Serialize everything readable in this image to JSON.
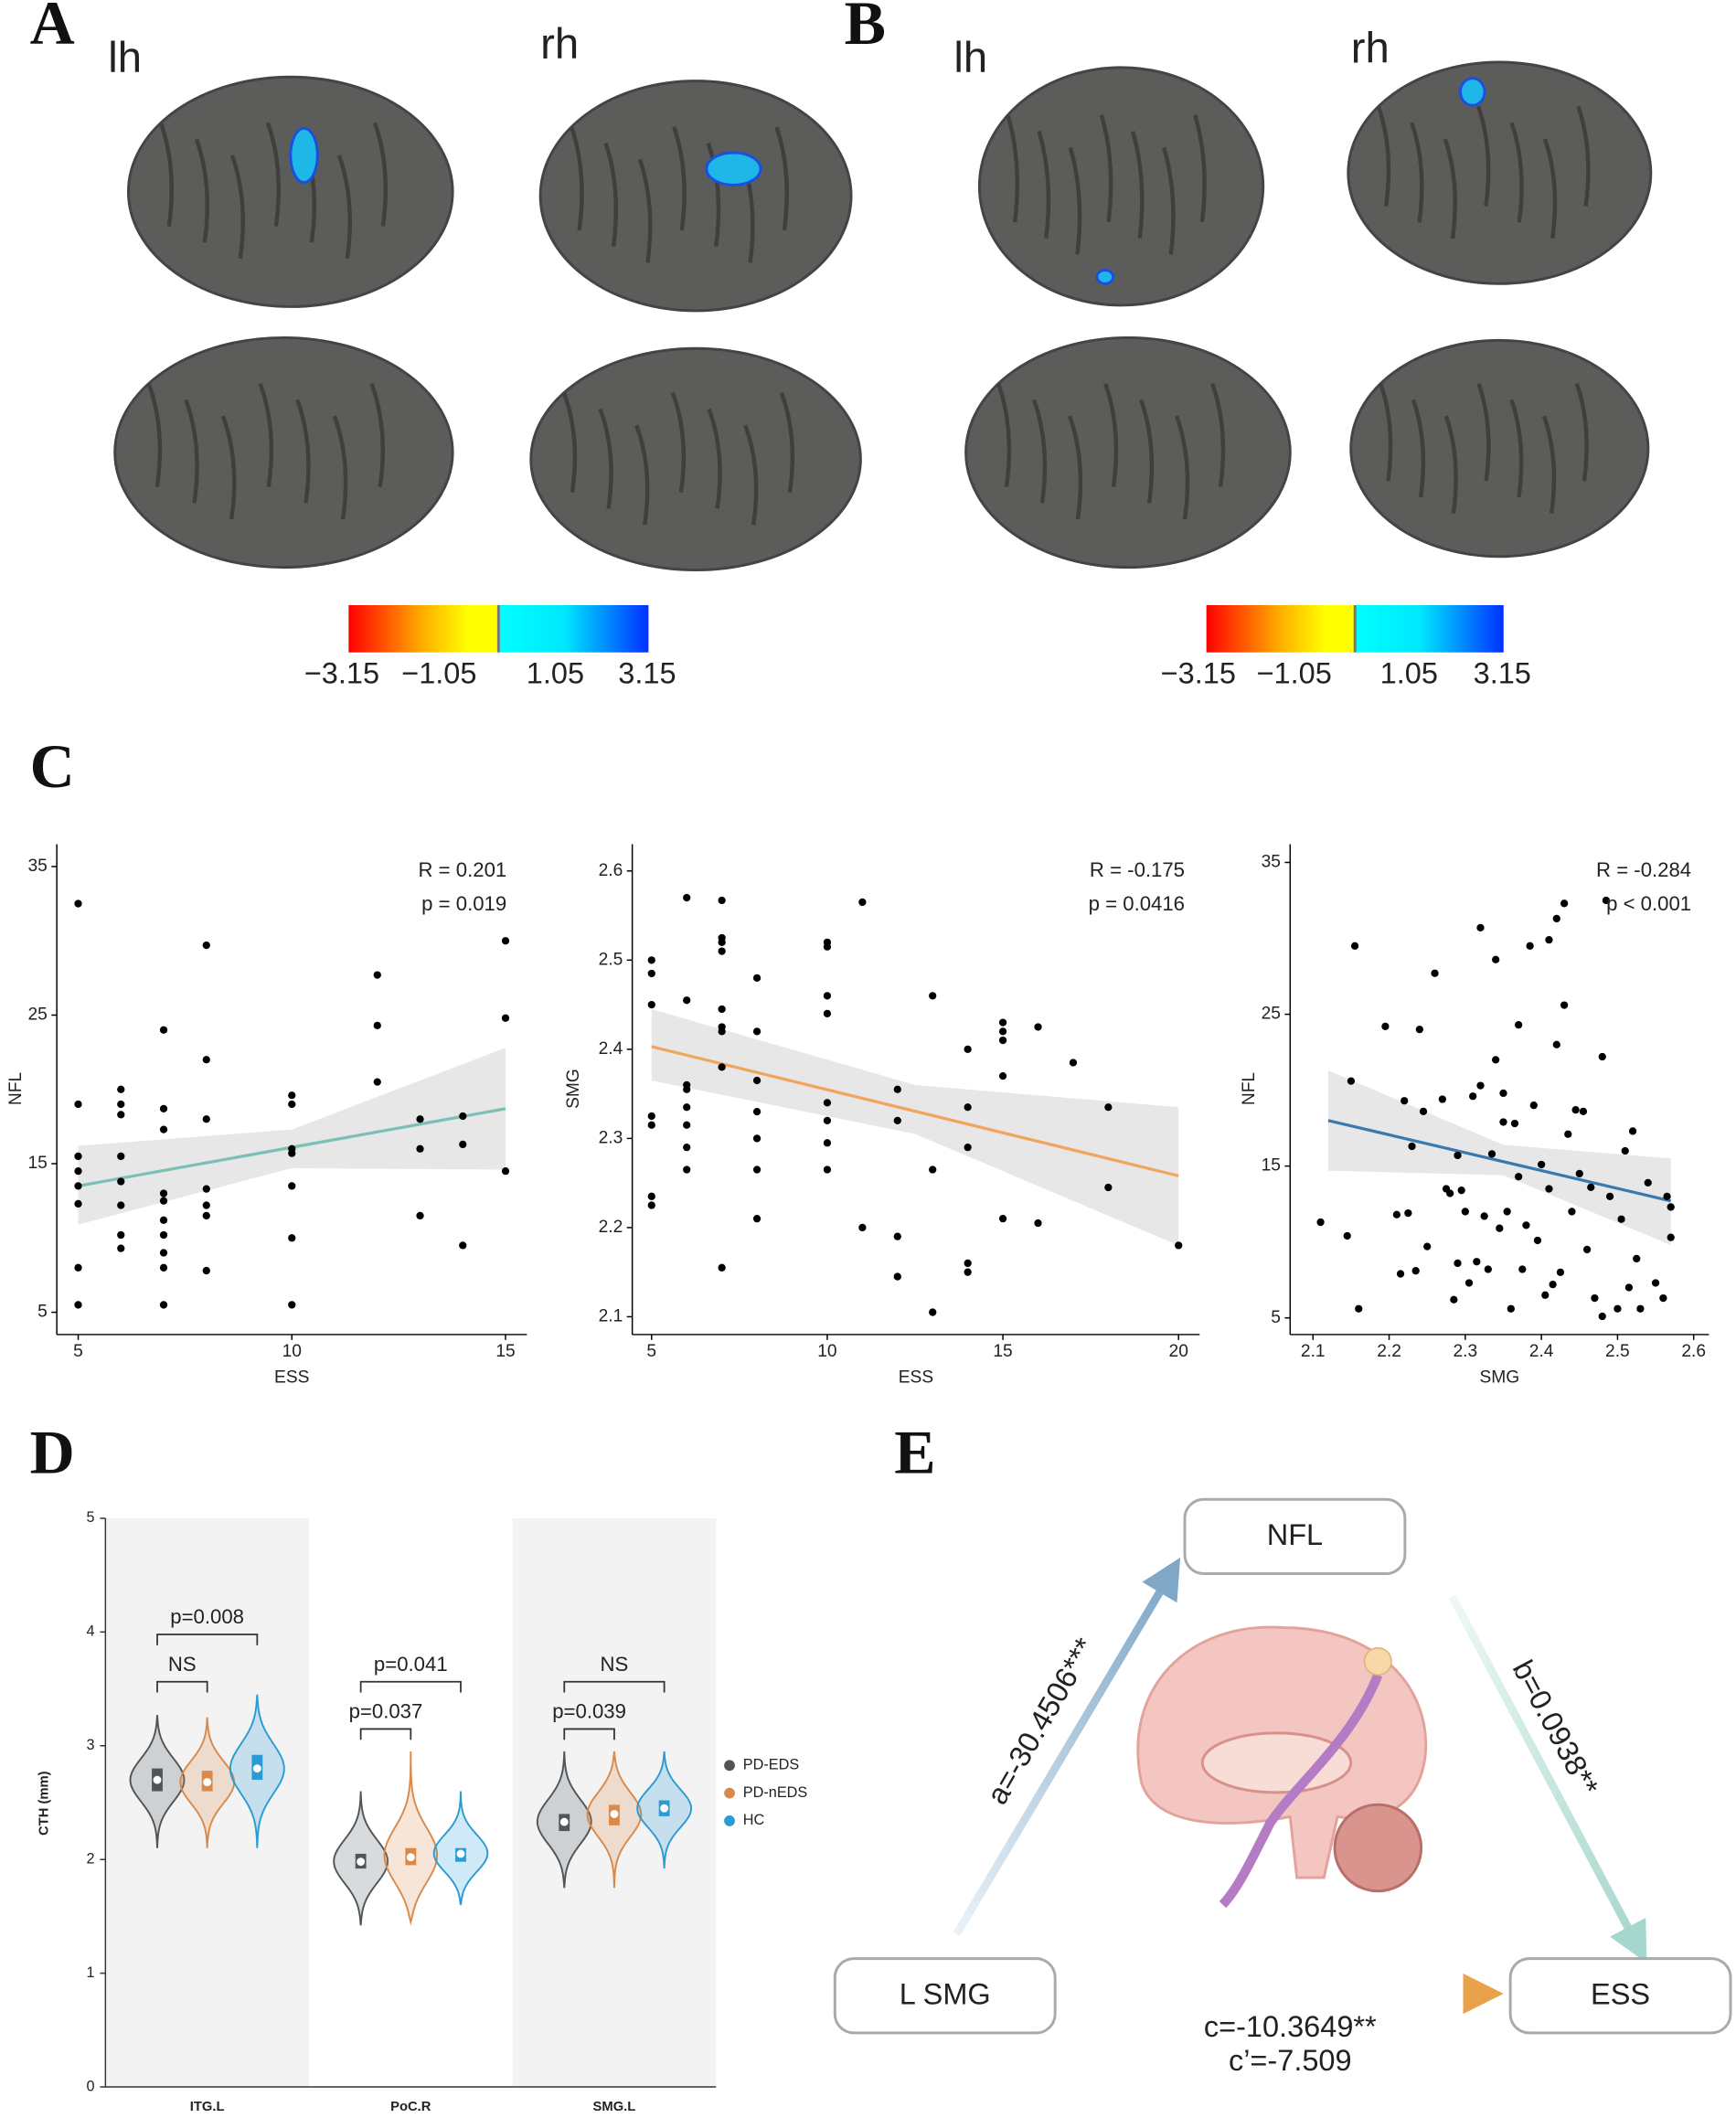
{
  "panel_labels": [
    "A",
    "B",
    "C",
    "D",
    "E"
  ],
  "brain_maps": [
    {
      "hemispheres": [
        "lh",
        "rh"
      ],
      "colorbar_labels": [
        "−3.15",
        "−1.05",
        "1.05",
        "3.15"
      ]
    },
    {
      "hemispheres": [
        "lh",
        "rh"
      ],
      "colorbar_labels": [
        "−3.15",
        "−1.05",
        "1.05",
        "3.15"
      ]
    }
  ],
  "chart_data": [
    {
      "type": "scatter",
      "xlabel": "ESS",
      "ylabel": "NFL",
      "x": [
        5,
        5,
        5,
        5,
        5,
        5,
        5,
        5,
        6,
        6,
        6,
        6,
        6,
        6,
        6,
        6,
        7,
        7,
        7,
        7,
        7,
        7,
        7,
        7,
        7,
        7,
        8,
        8,
        8,
        8,
        8,
        8,
        8,
        10,
        10,
        10,
        10,
        10,
        10,
        10,
        12,
        12,
        12,
        13,
        13,
        13,
        14,
        14,
        14,
        15,
        15,
        15
      ],
      "values": [
        32.5,
        19,
        15.5,
        14.5,
        13.5,
        12.3,
        8,
        5.5,
        20,
        19,
        18.3,
        15.5,
        13.8,
        12.2,
        10.2,
        9.3,
        24,
        18.7,
        17.3,
        13,
        12.5,
        11.2,
        10.2,
        9,
        8,
        5.5,
        29.7,
        22,
        18,
        13.3,
        12.2,
        11.5,
        7.8,
        19.6,
        19,
        16,
        15.7,
        13.5,
        10,
        5.5,
        27.7,
        24.3,
        20.5,
        18,
        16,
        11.5,
        18.2,
        16.3,
        9.5,
        30,
        24.8,
        14.5
      ],
      "point_color": "#000000",
      "fit": {
        "x": [
          5,
          15
        ],
        "y": [
          13.5,
          18.7
        ],
        "color": "#7cc0b5"
      },
      "ci": {
        "x": [
          5,
          10,
          15
        ],
        "lower": [
          10.9,
          14.7,
          14.6
        ],
        "upper": [
          16.2,
          17.3,
          22.8
        ],
        "color": "#e3e3e3"
      },
      "xlim": [
        4.5,
        15.5
      ],
      "ylim": [
        3.5,
        36.5
      ],
      "xticks": [
        5,
        10,
        15
      ],
      "yticks": [
        5,
        15,
        25,
        35
      ],
      "annotations": [
        "R = 0.201",
        "p = 0.019"
      ]
    },
    {
      "type": "scatter",
      "xlabel": "ESS",
      "ylabel": "SMG",
      "x": [
        5,
        5,
        5,
        5,
        5,
        5,
        5,
        6,
        6,
        6,
        6,
        6,
        6,
        6,
        6,
        7,
        7,
        7,
        7,
        7,
        7,
        7,
        7,
        7,
        8,
        8,
        8,
        8,
        8,
        8,
        8,
        10,
        10,
        10,
        10,
        10,
        10,
        10,
        10,
        11,
        11,
        12,
        12,
        12,
        12,
        13,
        13,
        13,
        14,
        14,
        14,
        14,
        14,
        15,
        15,
        15,
        15,
        15,
        16,
        16,
        17,
        18,
        18,
        20
      ],
      "values": [
        2.5,
        2.485,
        2.45,
        2.325,
        2.315,
        2.235,
        2.225,
        2.57,
        2.455,
        2.36,
        2.355,
        2.335,
        2.315,
        2.29,
        2.265,
        2.567,
        2.525,
        2.52,
        2.51,
        2.445,
        2.425,
        2.42,
        2.38,
        2.155,
        2.48,
        2.42,
        2.365,
        2.33,
        2.3,
        2.265,
        2.21,
        2.52,
        2.515,
        2.46,
        2.44,
        2.34,
        2.32,
        2.295,
        2.265,
        2.565,
        2.2,
        2.355,
        2.32,
        2.19,
        2.145,
        2.46,
        2.265,
        2.105,
        2.4,
        2.335,
        2.29,
        2.16,
        2.15,
        2.43,
        2.42,
        2.41,
        2.37,
        2.21,
        2.425,
        2.205,
        2.385,
        2.335,
        2.245,
        2.18
      ],
      "point_color": "#000000",
      "fit": {
        "x": [
          5,
          20
        ],
        "y": [
          2.403,
          2.258
        ],
        "color": "#f0a55e"
      },
      "ci": {
        "x": [
          5,
          12.5,
          20
        ],
        "lower": [
          2.365,
          2.305,
          2.18
        ],
        "upper": [
          2.445,
          2.36,
          2.335
        ],
        "color": "#e3e3e3"
      },
      "xlim": [
        4.45,
        20.6
      ],
      "ylim": [
        2.08,
        2.63
      ],
      "xticks": [
        5,
        10,
        15,
        20
      ],
      "yticks": [
        2.1,
        2.2,
        2.3,
        2.4,
        2.5,
        2.6
      ],
      "annotations": [
        "R = -0.175",
        "p = 0.0416"
      ]
    },
    {
      "type": "scatter",
      "xlabel": "SMG",
      "ylabel": "NFL",
      "x": [
        2.11,
        2.145,
        2.15,
        2.155,
        2.16,
        2.195,
        2.21,
        2.215,
        2.22,
        2.225,
        2.23,
        2.235,
        2.24,
        2.245,
        2.25,
        2.26,
        2.27,
        2.275,
        2.28,
        2.285,
        2.29,
        2.29,
        2.295,
        2.3,
        2.305,
        2.31,
        2.315,
        2.32,
        2.32,
        2.325,
        2.33,
        2.335,
        2.34,
        2.34,
        2.345,
        2.35,
        2.35,
        2.355,
        2.36,
        2.365,
        2.37,
        2.37,
        2.375,
        2.38,
        2.385,
        2.39,
        2.395,
        2.4,
        2.405,
        2.41,
        2.41,
        2.415,
        2.42,
        2.42,
        2.425,
        2.43,
        2.43,
        2.435,
        2.44,
        2.445,
        2.45,
        2.455,
        2.46,
        2.465,
        2.47,
        2.48,
        2.48,
        2.485,
        2.49,
        2.5,
        2.505,
        2.51,
        2.515,
        2.52,
        2.525,
        2.53,
        2.54,
        2.55,
        2.56,
        2.565,
        2.57,
        2.57
      ],
      "values": [
        11.3,
        10.4,
        20.6,
        29.5,
        5.6,
        24.2,
        11.8,
        7.9,
        19.3,
        11.9,
        16.3,
        8.1,
        24,
        18.6,
        9.7,
        27.7,
        19.4,
        13.5,
        13.2,
        6.2,
        15.7,
        8.6,
        13.4,
        12,
        7.3,
        19.6,
        8.7,
        30.7,
        20.3,
        11.7,
        8.2,
        15.8,
        28.6,
        22,
        10.9,
        19.8,
        17.9,
        12,
        5.6,
        17.8,
        24.3,
        14.3,
        8.2,
        11.1,
        29.5,
        19,
        10.1,
        15.1,
        6.5,
        29.9,
        13.5,
        7.2,
        31.3,
        23,
        8,
        32.3,
        25.6,
        17.1,
        12,
        18.7,
        14.5,
        18.6,
        9.5,
        13.6,
        6.3,
        22.2,
        5.1,
        32.5,
        13,
        5.6,
        11.5,
        16,
        7,
        17.3,
        8.9,
        5.6,
        13.9,
        7.3,
        6.3,
        13,
        10.3,
        12.3
      ],
      "point_color": "#000000",
      "fit": {
        "x": [
          2.12,
          2.57
        ],
        "y": [
          18,
          12.7
        ],
        "color": "#3b78b0"
      },
      "ci": {
        "x": [
          2.12,
          2.35,
          2.57
        ],
        "lower": [
          14.7,
          14.4,
          9.8
        ],
        "upper": [
          21.3,
          16.4,
          15.5
        ],
        "color": "#e3e3e3"
      },
      "xlim": [
        2.07,
        2.62
      ],
      "ylim": [
        3.9,
        36.2
      ],
      "xticks": [
        2.1,
        2.2,
        2.3,
        2.4,
        2.5,
        2.6
      ],
      "yticks": [
        5,
        15,
        25,
        35
      ],
      "annotations": [
        "R = -0.284",
        "p < 0.001"
      ]
    },
    {
      "type": "violin",
      "ylabel": "CTH (mm)",
      "categories": [
        "ITG.L",
        "PoC.R",
        "SMG.L"
      ],
      "ylim": [
        0,
        5
      ],
      "yticks": [
        0,
        1,
        2,
        3,
        4,
        5
      ],
      "series": [
        {
          "name": "PD-EDS",
          "color": "#4f5559",
          "median": [
            2.7,
            1.98,
            2.33
          ],
          "q1": [
            2.6,
            1.92,
            2.25
          ],
          "q3": [
            2.8,
            2.05,
            2.4
          ],
          "min": [
            2.1,
            1.42,
            1.75
          ],
          "max": [
            3.27,
            2.6,
            2.95
          ]
        },
        {
          "name": "PD-nEDS",
          "color": "#d98a4a",
          "median": [
            2.68,
            2.02,
            2.4
          ],
          "q1": [
            2.6,
            1.95,
            2.3
          ],
          "q3": [
            2.78,
            2.1,
            2.48
          ],
          "min": [
            2.1,
            1.45,
            1.75
          ],
          "max": [
            3.25,
            2.95,
            2.95
          ]
        },
        {
          "name": "HC",
          "color": "#2b9bd4",
          "median": [
            2.8,
            2.05,
            2.45
          ],
          "q1": [
            2.7,
            1.98,
            2.38
          ],
          "q3": [
            2.92,
            2.1,
            2.52
          ],
          "min": [
            2.1,
            1.6,
            1.92
          ],
          "max": [
            3.45,
            2.6,
            2.95
          ]
        }
      ],
      "annotations": [
        [
          "NS",
          "p=0.008"
        ],
        [
          "p=0.037",
          "p=0.041"
        ],
        [
          "p=0.039",
          "NS"
        ]
      ]
    }
  ],
  "mediation": {
    "nodes": [
      "NFL",
      "L SMG",
      "ESS"
    ],
    "paths": {
      "a": "a=-30.4506***",
      "b": "b=0.0938**",
      "c": "c=-10.3649**",
      "c_prime": "c’=-7.509"
    }
  }
}
